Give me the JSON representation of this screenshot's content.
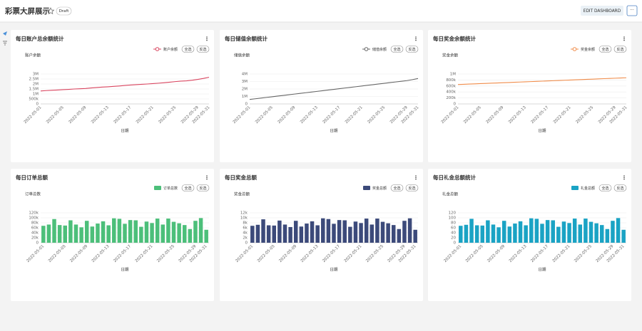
{
  "header": {
    "title": "彩票大屏展示",
    "badge": "Draft",
    "button": "EDIT DASHBOARD",
    "more": "···"
  },
  "chart_data": [
    {
      "type": "line",
      "title": "每日账户总余额统计",
      "y_label": "账户余额",
      "x_label": "日期",
      "legend_buttons": [
        "全选",
        "反选"
      ],
      "grid": true,
      "categories": [
        "2022-05-01",
        null,
        null,
        null,
        "2022-05-05",
        null,
        null,
        null,
        "2022-05-09",
        null,
        null,
        null,
        "2022-05-13",
        null,
        null,
        null,
        "2022-05-17",
        null,
        null,
        null,
        "2022-05-21",
        null,
        null,
        null,
        "2022-05-25",
        null,
        null,
        null,
        "2022-05-29",
        null,
        "2022-05-31"
      ],
      "series": [
        {
          "name": "账户余额",
          "color": "#d9455f",
          "values": [
            1300000,
            1340000,
            1370000,
            1400000,
            1430000,
            1460000,
            1500000,
            1520000,
            1550000,
            1600000,
            1650000,
            1690000,
            1720000,
            1760000,
            1800000,
            1850000,
            1900000,
            1930000,
            1970000,
            2000000,
            2040000,
            2080000,
            2130000,
            2180000,
            2240000,
            2290000,
            2320000,
            2380000,
            2460000,
            2560000,
            2680000
          ]
        }
      ],
      "ylim": [
        0,
        3000000
      ],
      "yticks": [
        0,
        {
          "value": 500000,
          "label": "500k"
        },
        {
          "value": 1000000,
          "label": "1M"
        },
        {
          "value": 1500000,
          "label": "1.5M"
        },
        {
          "value": 2000000,
          "label": "2M"
        },
        {
          "value": 2500000,
          "label": "2.5M"
        },
        {
          "value": 3000000,
          "label": "3M"
        }
      ]
    },
    {
      "type": "line",
      "title": "每日储值余额统计",
      "y_label": "储值余额",
      "x_label": "日期",
      "legend_buttons": [
        "全选",
        "反选"
      ],
      "grid": true,
      "categories": [
        "2022-05-01",
        null,
        null,
        null,
        "2022-05-05",
        null,
        null,
        null,
        "2022-05-09",
        null,
        null,
        null,
        "2022-05-13",
        null,
        null,
        null,
        "2022-05-17",
        null,
        null,
        null,
        "2022-05-21",
        null,
        null,
        null,
        "2022-05-25",
        null,
        null,
        null,
        "2022-05-29",
        null,
        "2022-05-31"
      ],
      "series": [
        {
          "name": "储值余额",
          "color": "#666666",
          "values": [
            600000,
            690000,
            780000,
            870000,
            960000,
            1050000,
            1140000,
            1230000,
            1320000,
            1410000,
            1500000,
            1590000,
            1680000,
            1770000,
            1860000,
            1950000,
            2040000,
            2130000,
            2220000,
            2310000,
            2400000,
            2490000,
            2580000,
            2670000,
            2760000,
            2850000,
            2940000,
            3030000,
            3120000,
            3250000,
            3400000
          ]
        }
      ],
      "ylim": [
        0,
        4000000
      ],
      "yticks": [
        0,
        {
          "value": 1000000,
          "label": "1M"
        },
        {
          "value": 2000000,
          "label": "2M"
        },
        {
          "value": 3000000,
          "label": "3M"
        },
        {
          "value": 4000000,
          "label": "4M"
        }
      ]
    },
    {
      "type": "line",
      "title": "每日奖金余额统计",
      "y_label": "奖金余额",
      "x_label": "日期",
      "legend_buttons": [
        "全选",
        "反选"
      ],
      "grid": true,
      "categories": [
        "2022-05-01",
        null,
        null,
        null,
        "2022-05-05",
        null,
        null,
        null,
        "2022-05-09",
        null,
        null,
        null,
        "2022-05-13",
        null,
        null,
        null,
        "2022-05-17",
        null,
        null,
        null,
        "2022-05-21",
        null,
        null,
        null,
        "2022-05-25",
        null,
        null,
        null,
        "2022-05-29",
        null,
        "2022-05-31"
      ],
      "series": [
        {
          "name": "奖金余额",
          "color": "#f08c4a",
          "values": [
            650000,
            657000,
            665000,
            672000,
            680000,
            687000,
            695000,
            702000,
            710000,
            717000,
            725000,
            732000,
            740000,
            747000,
            755000,
            762000,
            770000,
            777000,
            785000,
            792000,
            800000,
            807000,
            815000,
            822000,
            830000,
            837000,
            845000,
            852000,
            860000,
            867000,
            875000
          ]
        }
      ],
      "ylim": [
        0,
        1000000
      ],
      "yticks": [
        0,
        {
          "value": 200000,
          "label": "200k"
        },
        {
          "value": 400000,
          "label": "400k"
        },
        {
          "value": 600000,
          "label": "600k"
        },
        {
          "value": 800000,
          "label": "800k"
        },
        {
          "value": 1000000,
          "label": "1M"
        }
      ]
    },
    {
      "type": "bar",
      "title": "每日订单总额",
      "y_label": "订单总数",
      "x_label": "日期",
      "legend_buttons": [
        "全选",
        "反选"
      ],
      "grid": true,
      "categories": [
        "2022-05-01",
        null,
        null,
        null,
        "2022-05-05",
        null,
        null,
        null,
        "2022-05-09",
        null,
        null,
        null,
        "2022-05-13",
        null,
        null,
        null,
        "2022-05-17",
        null,
        null,
        null,
        "2022-05-21",
        null,
        null,
        null,
        "2022-05-25",
        null,
        null,
        null,
        "2022-05-29",
        null,
        "2022-05-31"
      ],
      "series": [
        {
          "name": "订单总数",
          "color": "#4cbf7a",
          "values": [
            68000,
            73000,
            95000,
            71000,
            69000,
            90000,
            73000,
            62000,
            88000,
            65000,
            77000,
            86000,
            70000,
            98000,
            96000,
            76000,
            91000,
            90000,
            64000,
            85000,
            79000,
            97000,
            73000,
            97000,
            84000,
            78000,
            71000,
            55000,
            88000,
            99000,
            52000
          ]
        }
      ],
      "ylim": [
        0,
        120000
      ],
      "yticks": [
        0,
        {
          "value": 20000,
          "label": "20k"
        },
        {
          "value": 40000,
          "label": "40k"
        },
        {
          "value": 60000,
          "label": "60k"
        },
        {
          "value": 80000,
          "label": "80k"
        },
        {
          "value": 100000,
          "label": "100k"
        },
        {
          "value": 120000,
          "label": "120k"
        }
      ]
    },
    {
      "type": "bar",
      "title": "每日奖金总额",
      "y_label": "奖金总额",
      "x_label": "日期",
      "legend_buttons": [
        "全选",
        "反选"
      ],
      "grid": true,
      "categories": [
        "2022-05-01",
        null,
        null,
        null,
        "2022-05-05",
        null,
        null,
        null,
        "2022-05-09",
        null,
        null,
        null,
        "2022-05-13",
        null,
        null,
        null,
        "2022-05-17",
        null,
        null,
        null,
        "2022-05-21",
        null,
        null,
        null,
        "2022-05-25",
        null,
        null,
        null,
        "2022-05-29",
        null,
        "2022-05-31"
      ],
      "series": [
        {
          "name": "奖金总额",
          "color": "#3c4a7a",
          "values": [
            6800,
            7200,
            9400,
            7000,
            6900,
            8900,
            7300,
            6300,
            8800,
            6500,
            7700,
            8600,
            7000,
            9800,
            9500,
            7600,
            9100,
            9000,
            6400,
            8500,
            7900,
            9700,
            7300,
            9700,
            8400,
            7800,
            7100,
            5500,
            8800,
            9800,
            5200
          ]
        }
      ],
      "ylim": [
        0,
        12000
      ],
      "yticks": [
        0,
        {
          "value": 2000,
          "label": "2k"
        },
        {
          "value": 4000,
          "label": "4k"
        },
        {
          "value": 6000,
          "label": "6k"
        },
        {
          "value": 8000,
          "label": "8k"
        },
        {
          "value": 10000,
          "label": "10k"
        },
        {
          "value": 12000,
          "label": "12k"
        }
      ]
    },
    {
      "type": "bar",
      "title": "每日礼金总额统计",
      "y_label": "礼金总额",
      "x_label": "日期",
      "legend_buttons": [
        "全选",
        "反选"
      ],
      "grid": true,
      "categories": [
        "2022-05-01",
        null,
        null,
        null,
        "2022-05-05",
        null,
        null,
        null,
        "2022-05-09",
        null,
        null,
        null,
        "2022-05-13",
        null,
        null,
        null,
        "2022-05-17",
        null,
        null,
        null,
        "2022-05-21",
        null,
        null,
        null,
        "2022-05-25",
        null,
        null,
        null,
        "2022-05-29",
        null,
        "2022-05-31"
      ],
      "series": [
        {
          "name": "礼金总额",
          "color": "#1aa3c4",
          "values": [
            68,
            72,
            96,
            70,
            69,
            90,
            73,
            62,
            88,
            65,
            77,
            86,
            70,
            98,
            96,
            76,
            91,
            90,
            64,
            85,
            79,
            97,
            73,
            97,
            84,
            78,
            71,
            55,
            88,
            99,
            52
          ]
        }
      ],
      "ylim": [
        0,
        120
      ],
      "yticks": [
        0,
        20,
        40,
        60,
        80,
        100,
        120
      ]
    }
  ]
}
